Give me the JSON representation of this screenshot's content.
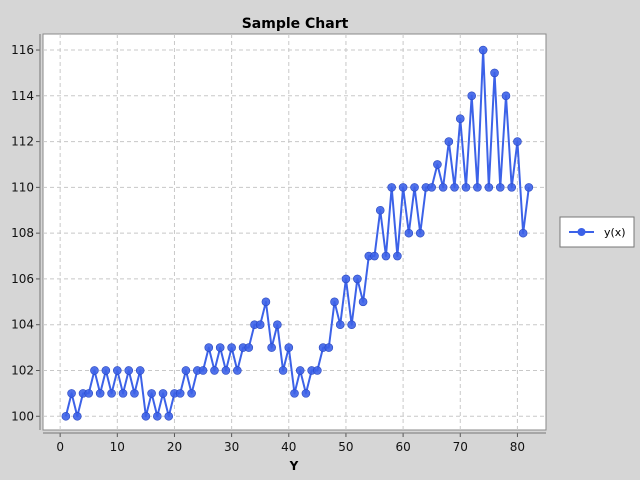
{
  "chart_data": {
    "type": "line",
    "title": "Sample Chart",
    "xlabel": "Y",
    "ylabel": "",
    "xlim": [
      -3,
      85
    ],
    "ylim": [
      99.4,
      116.7
    ],
    "xticks": [
      0,
      10,
      20,
      30,
      40,
      50,
      60,
      70,
      80
    ],
    "yticks": [
      100,
      102,
      104,
      106,
      108,
      110,
      112,
      114,
      116
    ],
    "grid": true,
    "legend_position": "right",
    "colors": {
      "series": "#3c62e8",
      "background": "#d6d6d6",
      "plot": "#ffffff",
      "grid": "#c8c8c8"
    },
    "series": [
      {
        "name": "y(x)",
        "x": [
          1,
          2,
          3,
          4,
          5,
          6,
          7,
          8,
          9,
          10,
          11,
          12,
          13,
          14,
          15,
          16,
          17,
          18,
          19,
          20,
          21,
          22,
          23,
          24,
          25,
          26,
          27,
          28,
          29,
          30,
          31,
          32,
          33,
          34,
          35,
          36,
          37,
          38,
          39,
          40,
          41,
          42,
          43,
          44,
          45,
          46,
          47,
          48,
          49,
          50,
          51,
          52,
          53,
          54,
          55,
          56,
          57,
          58,
          59,
          60,
          61,
          62,
          63,
          64,
          65,
          66,
          67,
          68,
          69,
          70,
          71,
          72,
          73,
          74,
          75,
          76,
          77,
          78,
          79,
          80,
          81,
          82
        ],
        "y": [
          100,
          101,
          100,
          101,
          101,
          102,
          101,
          102,
          101,
          102,
          101,
          102,
          101,
          102,
          100,
          101,
          100,
          101,
          100,
          101,
          101,
          102,
          101,
          102,
          102,
          103,
          102,
          103,
          102,
          103,
          102,
          103,
          103,
          104,
          104,
          105,
          103,
          104,
          102,
          103,
          101,
          102,
          101,
          102,
          102,
          103,
          103,
          105,
          104,
          106,
          104,
          106,
          105,
          107,
          107,
          109,
          107,
          110,
          107,
          110,
          108,
          110,
          108,
          110,
          110,
          111,
          110,
          112,
          110,
          113,
          110,
          114,
          110,
          116,
          110,
          115,
          110,
          114,
          110,
          112,
          108,
          110
        ]
      }
    ]
  }
}
